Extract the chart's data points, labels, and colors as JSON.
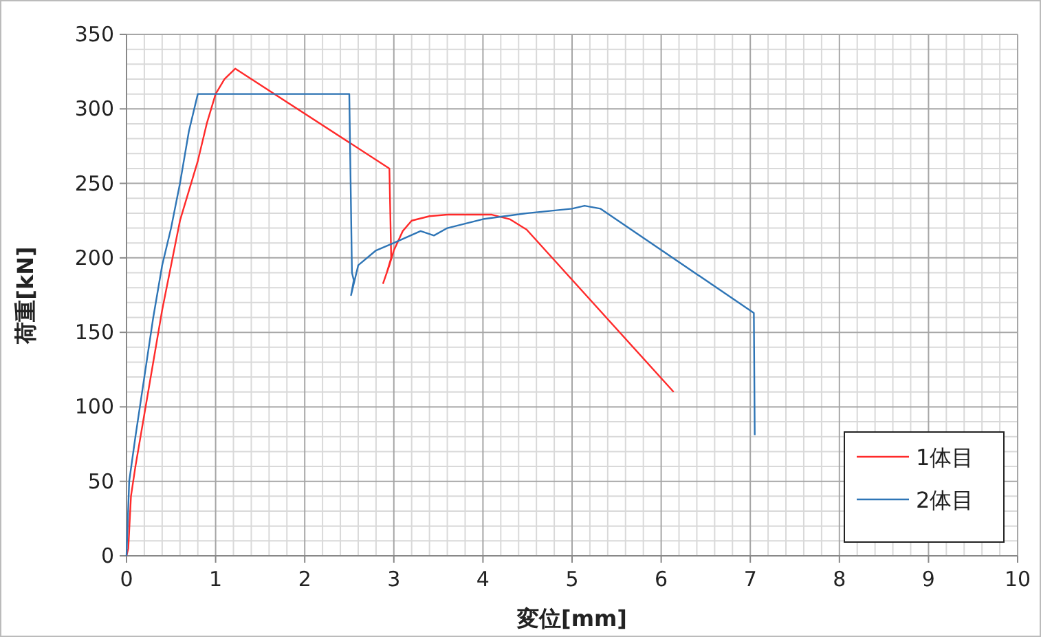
{
  "chart_data": {
    "type": "line",
    "xlabel": "変位[mm]",
    "ylabel": "荷重[kN]",
    "xlim": [
      0,
      10
    ],
    "ylim": [
      0,
      350
    ],
    "xticks": [
      0,
      1,
      2,
      3,
      4,
      5,
      6,
      7,
      8,
      9,
      10
    ],
    "yticks": [
      0,
      50,
      100,
      150,
      200,
      250,
      300,
      350
    ],
    "grid": true,
    "legend": "bottom right",
    "line_style": "solid",
    "marker": "none",
    "series": [
      {
        "name": "1体目",
        "color": "#ff2a2a",
        "x": [
          0,
          0.02,
          0.05,
          0.1,
          0.2,
          0.3,
          0.4,
          0.5,
          0.6,
          0.7,
          0.8,
          0.9,
          1.0,
          1.1,
          1.22,
          2.95,
          2.97,
          2.92,
          2.88,
          2.95,
          3.0,
          3.1,
          3.2,
          3.4,
          3.6,
          4.1,
          4.3,
          4.49,
          6.14
        ],
        "values": [
          0,
          5,
          40,
          60,
          95,
          130,
          165,
          195,
          225,
          245,
          265,
          290,
          310,
          320,
          327,
          260,
          200,
          190,
          183,
          195,
          205,
          218,
          225,
          228,
          229,
          229,
          226,
          219,
          110
        ]
      },
      {
        "name": "2体目",
        "color": "#2e75b6",
        "x": [
          0,
          0.03,
          0.1,
          0.2,
          0.3,
          0.4,
          0.5,
          0.6,
          0.7,
          0.8,
          2.5,
          2.53,
          2.55,
          2.52,
          2.6,
          2.8,
          3.0,
          3.3,
          3.45,
          3.6,
          4.0,
          4.5,
          5.0,
          5.14,
          5.32,
          7.04,
          7.05
        ],
        "values": [
          0,
          50,
          80,
          120,
          160,
          195,
          220,
          250,
          285,
          310,
          310,
          190,
          185,
          175,
          195,
          205,
          210,
          218,
          215,
          220,
          226,
          230,
          233,
          235,
          233,
          163,
          81
        ]
      }
    ]
  }
}
